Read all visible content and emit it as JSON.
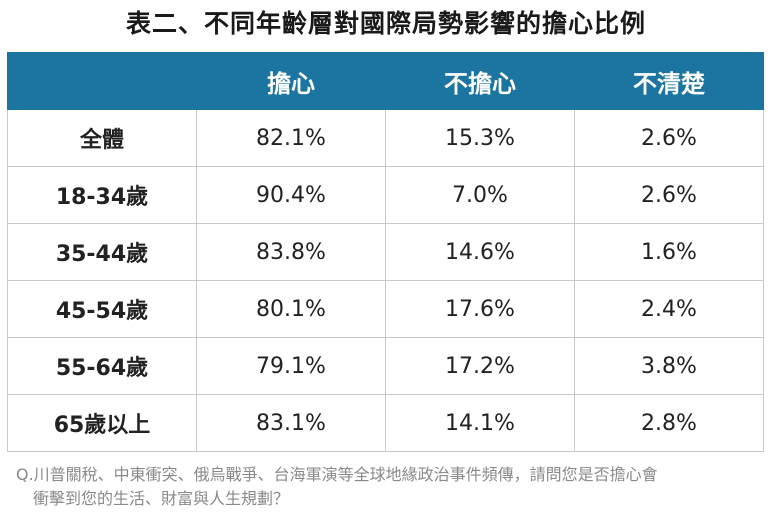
{
  "title": "表二、不同年齡層對國際局勢影響的擔心比例",
  "table": {
    "headers": [
      "",
      "擔心",
      "不擔心",
      "不清楚"
    ],
    "rows": [
      {
        "label": "全體",
        "values": [
          "82.1%",
          "15.3%",
          "2.6%"
        ]
      },
      {
        "label": "18-34歲",
        "values": [
          "90.4%",
          "7.0%",
          "2.6%"
        ]
      },
      {
        "label": "35-44歲",
        "values": [
          "83.8%",
          "14.6%",
          "1.6%"
        ]
      },
      {
        "label": "45-54歲",
        "values": [
          "80.1%",
          "17.6%",
          "2.4%"
        ]
      },
      {
        "label": "55-64歲",
        "values": [
          "79.1%",
          "17.2%",
          "3.8%"
        ]
      },
      {
        "label": "65歲以上",
        "values": [
          "83.1%",
          "14.1%",
          "2.8%"
        ]
      }
    ]
  },
  "note": {
    "line1": "Q.川普關稅、中東衝突、俄烏戰爭、台海軍演等全球地緣政治事件頻傳，請問您是否擔心會",
    "line2": "衝擊到您的生活、財富與人生規劃？"
  },
  "colors": {
    "header_bg": "#1b75a0",
    "header_text": "#ffffff",
    "grid": "#c9c9c9",
    "note_text": "#8a8a8a"
  }
}
